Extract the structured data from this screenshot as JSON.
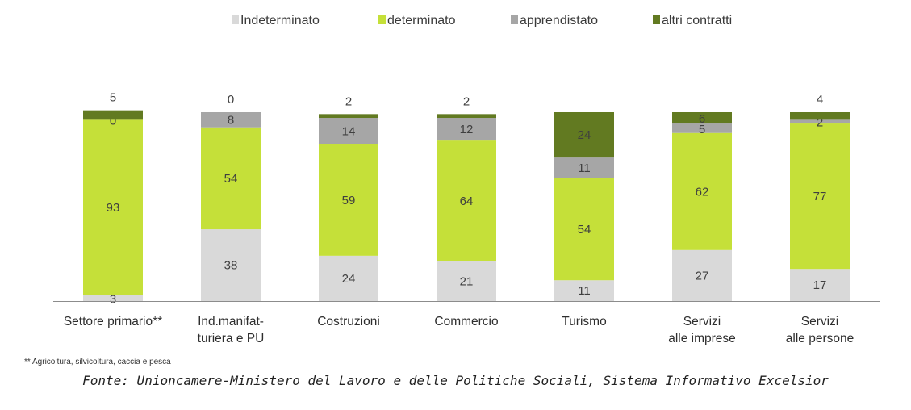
{
  "chart_data": {
    "type": "bar",
    "stacked": true,
    "categories": [
      [
        "Settore primario**"
      ],
      [
        "Ind.manifat-",
        "turiera e PU"
      ],
      [
        "Costruzioni"
      ],
      [
        "Commercio"
      ],
      [
        "Turismo"
      ],
      [
        "Servizi",
        "alle imprese"
      ],
      [
        "Servizi",
        "alle persone"
      ]
    ],
    "series": [
      {
        "name": "Indeterminato",
        "color": "#d9d9d9",
        "values": [
          3,
          38,
          24,
          21,
          11,
          27,
          17
        ]
      },
      {
        "name": "determinato",
        "color": "#c5e039",
        "values": [
          93,
          54,
          59,
          64,
          54,
          62,
          77
        ]
      },
      {
        "name": "apprendistato",
        "color": "#a6a6a6",
        "values": [
          0,
          8,
          14,
          12,
          11,
          5,
          2
        ]
      },
      {
        "name": "altri contratti",
        "color": "#627a21",
        "values": [
          5,
          0,
          2,
          2,
          24,
          6,
          4
        ]
      }
    ],
    "ylim": [
      0,
      100
    ],
    "grid": false,
    "legend_position": "top"
  },
  "footnote": "** Agricoltura, silvicoltura, caccia e pesca",
  "source": "Fonte: Unioncamere-Ministero del Lavoro e delle Politiche Sociali, Sistema Informativo Excelsior"
}
